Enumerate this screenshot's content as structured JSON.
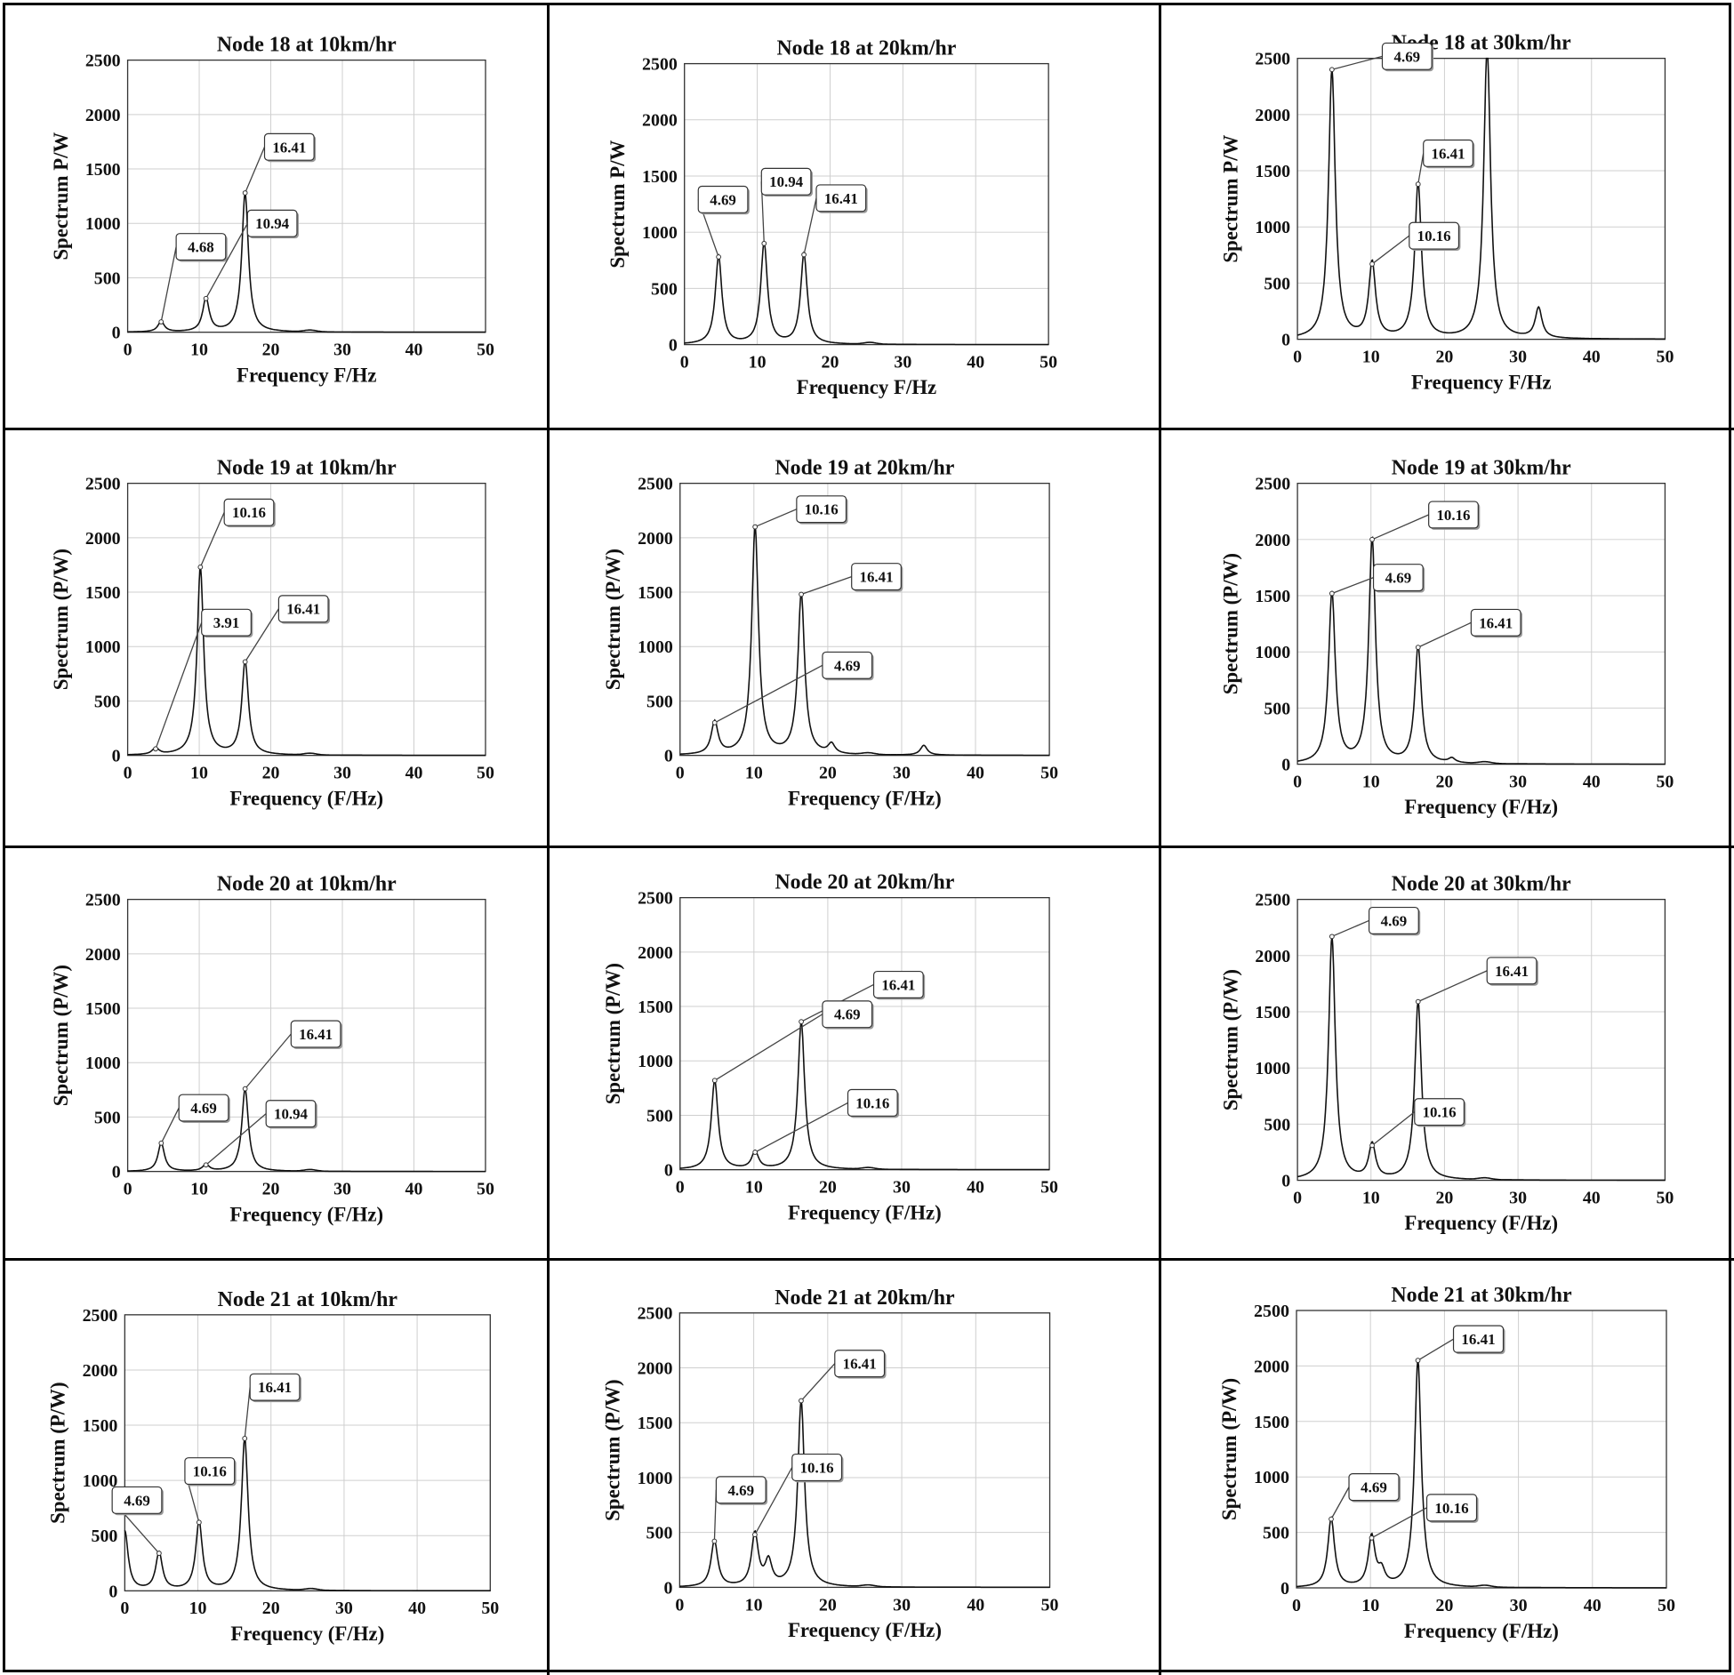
{
  "chart_data": [
    {
      "type": "line",
      "title": "Node 18 at 10km/hr",
      "xlabel": "Frequency F/Hz",
      "ylabel": "Spectrum P/W",
      "xlim": [
        0,
        50
      ],
      "ylim": [
        0,
        2500
      ],
      "xticks": [
        "0",
        "10",
        "20",
        "30",
        "40",
        "50"
      ],
      "yticks": [
        "0",
        "500",
        "1000",
        "1500",
        "2000",
        "2500"
      ],
      "peaks": [
        [
          4.68,
          95
        ],
        [
          10.94,
          310
        ],
        [
          16.41,
          1280
        ]
      ],
      "annotations": [
        {
          "label": "4.68",
          "x": 4.68,
          "y": 95
        },
        {
          "label": "10.94",
          "x": 10.94,
          "y": 310
        },
        {
          "label": "16.41",
          "x": 16.41,
          "y": 1280
        }
      ]
    },
    {
      "type": "line",
      "title": "Node 18 at 20km/hr",
      "xlabel": "Frequency F/Hz",
      "ylabel": "Spectrum P/W",
      "xlim": [
        0,
        50
      ],
      "ylim": [
        0,
        2500
      ],
      "xticks": [
        "0",
        "10",
        "20",
        "30",
        "40",
        "50"
      ],
      "yticks": [
        "0",
        "500",
        "1000",
        "1500",
        "2000",
        "2500"
      ],
      "peaks": [
        [
          4.69,
          780
        ],
        [
          10.94,
          900
        ],
        [
          16.41,
          800
        ]
      ],
      "annotations": [
        {
          "label": "4.69",
          "x": 4.69,
          "y": 780
        },
        {
          "label": "10.94",
          "x": 10.94,
          "y": 900
        },
        {
          "label": "16.41",
          "x": 16.41,
          "y": 800
        }
      ]
    },
    {
      "type": "line",
      "title": "Node 18 at 30km/hr",
      "xlabel": "Frequency F/Hz",
      "ylabel": "Spectrum P/W",
      "xlim": [
        0,
        50
      ],
      "ylim": [
        0,
        2500
      ],
      "xticks": [
        "0",
        "10",
        "20",
        "30",
        "40",
        "50"
      ],
      "yticks": [
        "0",
        "500",
        "1000",
        "1500",
        "2000",
        "2500"
      ],
      "peaks": [
        [
          4.69,
          2400
        ],
        [
          10.16,
          670
        ],
        [
          16.41,
          1380
        ],
        [
          25.8,
          2600
        ],
        [
          32.8,
          270
        ]
      ],
      "annotations": [
        {
          "label": "4.69",
          "x": 4.69,
          "y": 2400
        },
        {
          "label": "16.41",
          "x": 16.41,
          "y": 1380
        },
        {
          "label": "10.16",
          "x": 10.16,
          "y": 670
        }
      ]
    },
    {
      "type": "line",
      "title": "Node 19 at 10km/hr",
      "xlabel": "Frequency (F/Hz)",
      "ylabel": "Spectrum (P/W)",
      "xlim": [
        0,
        50
      ],
      "ylim": [
        0,
        2500
      ],
      "xticks": [
        "0",
        "10",
        "20",
        "30",
        "40",
        "50"
      ],
      "yticks": [
        "0",
        "500",
        "1000",
        "1500",
        "2000",
        "2500"
      ],
      "peaks": [
        [
          3.91,
          60
        ],
        [
          10.16,
          1730
        ],
        [
          16.41,
          860
        ]
      ],
      "annotations": [
        {
          "label": "10.16",
          "x": 10.16,
          "y": 1730
        },
        {
          "label": "3.91",
          "x": 3.91,
          "y": 60
        },
        {
          "label": "16.41",
          "x": 16.41,
          "y": 860
        }
      ]
    },
    {
      "type": "line",
      "title": "Node 19 at 20km/hr",
      "xlabel": "Frequency (F/Hz)",
      "ylabel": "Spectrum (P/W)",
      "xlim": [
        0,
        50
      ],
      "ylim": [
        0,
        2500
      ],
      "xticks": [
        "0",
        "10",
        "20",
        "30",
        "40",
        "50"
      ],
      "yticks": [
        "0",
        "500",
        "1000",
        "1500",
        "2000",
        "2500"
      ],
      "peaks": [
        [
          4.69,
          300
        ],
        [
          10.16,
          2100
        ],
        [
          16.41,
          1480
        ],
        [
          20.5,
          90
        ],
        [
          33,
          90
        ]
      ],
      "annotations": [
        {
          "label": "10.16",
          "x": 10.16,
          "y": 2100
        },
        {
          "label": "16.41",
          "x": 16.41,
          "y": 1480
        },
        {
          "label": "4.69",
          "x": 4.69,
          "y": 300
        }
      ]
    },
    {
      "type": "line",
      "title": "Node 19 at 30km/hr",
      "xlabel": "Frequency (F/Hz)",
      "ylabel": "Spectrum (P/W)",
      "xlim": [
        0,
        50
      ],
      "ylim": [
        0,
        2500
      ],
      "xticks": [
        "0",
        "10",
        "20",
        "30",
        "40",
        "50"
      ],
      "yticks": [
        "0",
        "500",
        "1000",
        "1500",
        "2000",
        "2500"
      ],
      "peaks": [
        [
          4.69,
          1520
        ],
        [
          10.16,
          2000
        ],
        [
          16.41,
          1040
        ],
        [
          21,
          40
        ]
      ],
      "annotations": [
        {
          "label": "10.16",
          "x": 10.16,
          "y": 2000
        },
        {
          "label": "4.69",
          "x": 4.69,
          "y": 1520
        },
        {
          "label": "16.41",
          "x": 16.41,
          "y": 1040
        }
      ]
    },
    {
      "type": "line",
      "title": "Node 20 at 10km/hr",
      "xlabel": "Frequency (F/Hz)",
      "ylabel": "Spectrum (P/W)",
      "xlim": [
        0,
        50
      ],
      "ylim": [
        0,
        2500
      ],
      "xticks": [
        "0",
        "10",
        "20",
        "30",
        "40",
        "50"
      ],
      "yticks": [
        "0",
        "500",
        "1000",
        "1500",
        "2000",
        "2500"
      ],
      "peaks": [
        [
          4.69,
          260
        ],
        [
          10.94,
          60
        ],
        [
          16.41,
          760
        ]
      ],
      "annotations": [
        {
          "label": "16.41",
          "x": 16.41,
          "y": 760
        },
        {
          "label": "4.69",
          "x": 4.69,
          "y": 260
        },
        {
          "label": "10.94",
          "x": 10.94,
          "y": 60
        }
      ]
    },
    {
      "type": "line",
      "title": "Node 20 at 20km/hr",
      "xlabel": "Frequency (F/Hz)",
      "ylabel": "Spectrum (P/W)",
      "xlim": [
        0,
        50
      ],
      "ylim": [
        0,
        2500
      ],
      "xticks": [
        "0",
        "10",
        "20",
        "30",
        "40",
        "50"
      ],
      "yticks": [
        "0",
        "500",
        "1000",
        "1500",
        "2000",
        "2500"
      ],
      "peaks": [
        [
          4.69,
          820
        ],
        [
          10.16,
          160
        ],
        [
          16.41,
          1360
        ]
      ],
      "annotations": [
        {
          "label": "16.41",
          "x": 16.41,
          "y": 1360
        },
        {
          "label": "4.69",
          "x": 4.69,
          "y": 820
        },
        {
          "label": "10.16",
          "x": 10.16,
          "y": 160
        }
      ]
    },
    {
      "type": "line",
      "title": "Node 20 at 30km/hr",
      "xlabel": "Frequency (F/Hz)",
      "ylabel": "Spectrum (P/W)",
      "xlim": [
        0,
        50
      ],
      "ylim": [
        0,
        2500
      ],
      "xticks": [
        "0",
        "10",
        "20",
        "30",
        "40",
        "50"
      ],
      "yticks": [
        "0",
        "500",
        "1000",
        "1500",
        "2000",
        "2500"
      ],
      "peaks": [
        [
          4.69,
          2170
        ],
        [
          10.16,
          310
        ],
        [
          16.41,
          1590
        ]
      ],
      "annotations": [
        {
          "label": "4.69",
          "x": 4.69,
          "y": 2170
        },
        {
          "label": "16.41",
          "x": 16.41,
          "y": 1590
        },
        {
          "label": "10.16",
          "x": 10.16,
          "y": 310
        }
      ]
    },
    {
      "type": "line",
      "title": "Node 21 at 10km/hr",
      "xlabel": "Frequency (F/Hz)",
      "ylabel": "Spectrum (P/W)",
      "xlim": [
        0,
        50
      ],
      "ylim": [
        0,
        2500
      ],
      "xticks": [
        "0",
        "10",
        "20",
        "30",
        "40",
        "50"
      ],
      "yticks": [
        "0",
        "500",
        "1000",
        "1500",
        "2000",
        "2500"
      ],
      "peaks": [
        [
          0,
          540
        ],
        [
          4.69,
          340
        ],
        [
          10.16,
          620
        ],
        [
          16.41,
          1380
        ]
      ],
      "annotations": [
        {
          "label": "16.41",
          "x": 16.41,
          "y": 1380
        },
        {
          "label": "10.16",
          "x": 10.16,
          "y": 620
        },
        {
          "label": "4.69",
          "x": 4.69,
          "y": 340
        }
      ]
    },
    {
      "type": "line",
      "title": "Node 21 at 20km/hr",
      "xlabel": "Frequency (F/Hz)",
      "ylabel": "Spectrum (P/W)",
      "xlim": [
        0,
        50
      ],
      "ylim": [
        0,
        2500
      ],
      "xticks": [
        "0",
        "10",
        "20",
        "30",
        "40",
        "50"
      ],
      "yticks": [
        "0",
        "500",
        "1000",
        "1500",
        "2000",
        "2500"
      ],
      "peaks": [
        [
          4.69,
          420
        ],
        [
          10.16,
          480
        ],
        [
          12,
          220
        ],
        [
          16.41,
          1700
        ]
      ],
      "annotations": [
        {
          "label": "16.41",
          "x": 16.41,
          "y": 1700
        },
        {
          "label": "10.16",
          "x": 10.16,
          "y": 480
        },
        {
          "label": "4.69",
          "x": 4.69,
          "y": 420
        }
      ]
    },
    {
      "type": "line",
      "title": "Node 21 at 30km/hr",
      "xlabel": "Frequency (F/Hz)",
      "ylabel": "Spectrum (P/W)",
      "xlim": [
        0,
        50
      ],
      "ylim": [
        0,
        2500
      ],
      "xticks": [
        "0",
        "10",
        "20",
        "30",
        "40",
        "50"
      ],
      "yticks": [
        "0",
        "500",
        "1000",
        "1500",
        "2000",
        "2500"
      ],
      "peaks": [
        [
          4.69,
          620
        ],
        [
          10.16,
          450
        ],
        [
          11.5,
          130
        ],
        [
          16.41,
          2050
        ]
      ],
      "annotations": [
        {
          "label": "16.41",
          "x": 16.41,
          "y": 2050
        },
        {
          "label": "4.69",
          "x": 4.69,
          "y": 620
        },
        {
          "label": "10.16",
          "x": 10.16,
          "y": 450
        }
      ]
    }
  ]
}
